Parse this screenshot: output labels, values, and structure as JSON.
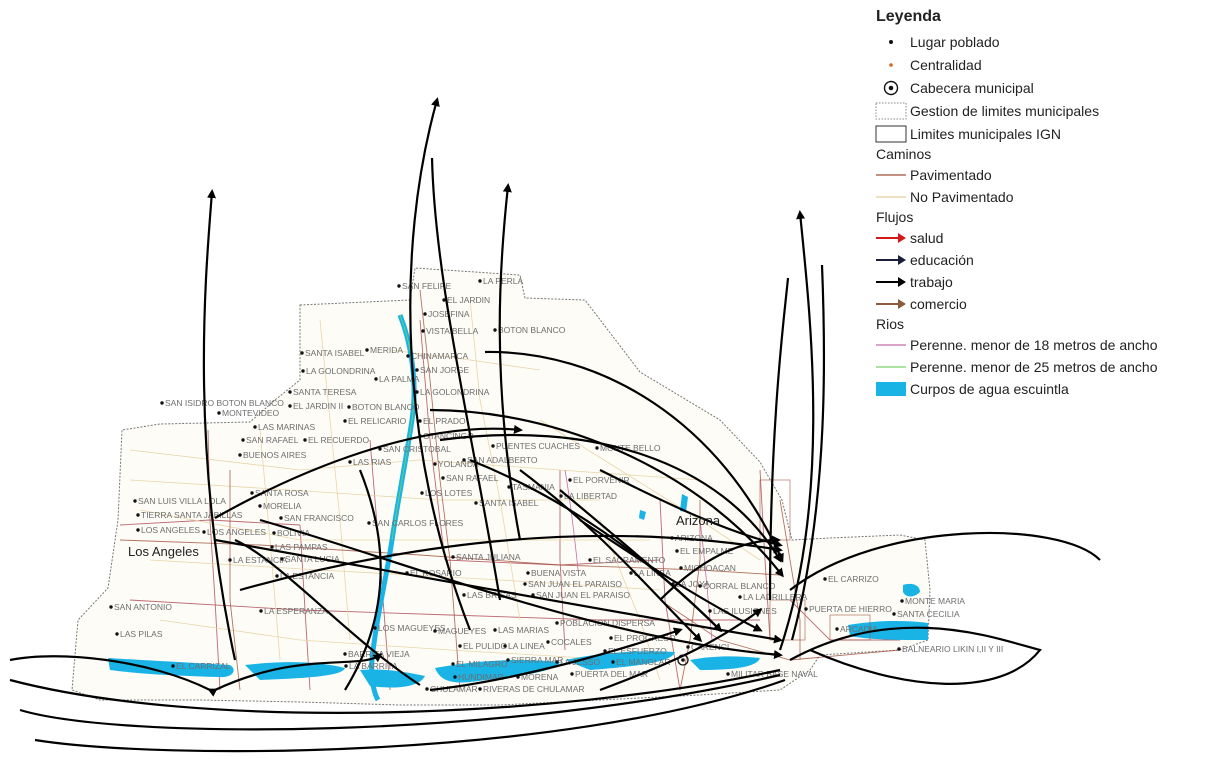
{
  "legend": {
    "title": "Leyenda",
    "items": {
      "lugar_poblado": "Lugar poblado",
      "centralidad": "Centralidad",
      "cabecera": "Cabecera municipal",
      "gestion": "Gestion de limites municipales",
      "limites_ign": "Limites municipales IGN"
    },
    "caminos_title": "Caminos",
    "caminos": {
      "pavimentado": "Pavimentado",
      "no_pavimentado": "No Pavimentado"
    },
    "flujos_title": "Flujos",
    "flujos": {
      "salud": "salud",
      "educacion": "educación",
      "trabajo": "trabajo",
      "comercio": "comercio"
    },
    "rios_title": "Rios",
    "rios": {
      "perenne18": "Perenne. menor de 18 metros de ancho",
      "perenne25": "Perenne. menor de 25 metros de ancho",
      "cuerpos": "Curpos de agua escuintla"
    }
  },
  "colors": {
    "salud": "#d21a1a",
    "educacion": "#1b1e3b",
    "trabajo": "#000000",
    "comercio": "#8c5a3c",
    "pavimentado": "#a0523c",
    "no_pavimentado": "#e8d6a8",
    "rio18": "#c86ea8",
    "rio25": "#7bd36b",
    "agua": "#19b3e6",
    "centralidad": "#d2691e"
  },
  "map": {
    "towns": {
      "los_angeles": "Los Angeles",
      "arizona": "Arizona"
    },
    "places": {
      "p1": "SAN FELIPE",
      "p2": "LA PERLA",
      "p3": "EL JARDIN",
      "p4": "JOSEFINA",
      "p5": "VISTA BELLA",
      "p6": "BOTON BLANCO",
      "p7": "SANTA ISABEL",
      "p8": "MERIDA",
      "p9": "CHINAMARCA",
      "p10": "LA GOLONDRINA",
      "p11": "SAN JORGE",
      "p12": "LA PALMA",
      "p13": "SANTA TERESA",
      "p14": "LA GOLONDRINA",
      "p15": "SAN ISIDRO BOTON BLANCO",
      "p16": "EL JARDIN II",
      "p17": "BOTON BLANCO",
      "p18": "MONTEVIDEO",
      "p19": "LAS MARINAS",
      "p20": "EL RELICARIO",
      "p21": "EL PRADO",
      "p22": "SAN RAFAEL",
      "p23": "EL RECUERDO",
      "p24": "OTANCINGO",
      "p25": "PUENTES CUACHES",
      "p26": "MONTE BELLO",
      "p27": "BUENOS AIRES",
      "p28": "SAN CRISTOBAL",
      "p29": "LAS RIAS",
      "p30": "YOLANDA",
      "p31": "SAN ADALBERTO",
      "p32": "EL PORVENIR",
      "p33": "LOS LOTES",
      "p34": "SAN RAFAEL",
      "p35": "TASMANIA",
      "p36": "LA LIBERTAD",
      "p37": "SAN LUIS VILLA LOLA",
      "p38": "SANTA ROSA",
      "p39": "SANTA ISABEL",
      "p40": "TIERRA SANTA JABILLAS",
      "p41": "MORELIA",
      "p42": "SAN FRANCISCO",
      "p43": "SAN CARLOS FLORES",
      "p44": "LOS ANGELES",
      "p45": "LOS ANGELES",
      "p46": "BOLIVIA",
      "p47": "ARIZONA",
      "p48": "LAS PAMPAS",
      "p49": "EL EMPALME",
      "p50": "SANTA LUCIA",
      "p51": "LA ESTANCIA",
      "p52": "SANTA JULIANA",
      "p53": "EL SACRAMENTO",
      "p54": "LA ESTANCIA",
      "p55": "EL ROSARIO",
      "p56": "BUENA VISTA",
      "p57": "LA LINEA",
      "p58": "MICHOACAN",
      "p59": "SAN JUAN EL PARAISO",
      "p60": "LA JOYA",
      "p61": "CORRAL BLANCO",
      "p62": "SAN ANTONIO",
      "p63": "LA ESPERANZA",
      "p64": "LAS BRISAS",
      "p65": "SAN JUAN EL PARAISO",
      "p66": "LA LADRILLERA",
      "p67": "EL CARRIZO",
      "p68": "MONTE MARIA",
      "p69": "LAS PILAS",
      "p70": "LAS ILUSIONES",
      "p71": "PUERTA DE HIERRO",
      "p72": "SANTA CECILIA",
      "p73": "LOS MAGUEYES",
      "p74": "MAGUEYES",
      "p75": "LAS MARIAS",
      "p76": "POBLACION DISPERSA",
      "p77": "ARCADIA",
      "p78": "EL PULIDO",
      "p79": "LA LINEA",
      "p80": "COCALES",
      "p81": "EL PROGRESO",
      "p82": "BARRITA VIEJA",
      "p83": "EL ESFUERZO",
      "p84": "CARENCI",
      "p85": "EL CARRIZAL",
      "p86": "LA BARRITA",
      "p87": "EL MILAGRO",
      "p88": "SIERRA MAR",
      "p89": "LA JESSO",
      "p90": "EL MANGLAR",
      "p91": "BALNEARIO LIKIN I,II Y III",
      "p92": "HUNDIMAR",
      "p93": "MORENA",
      "p94": "PUERTA DEL MAR",
      "p95": "MILITAR BASE NAVAL",
      "p96": "CHULAMAR",
      "p97": "RIVERAS DE CHULAMAR"
    }
  }
}
